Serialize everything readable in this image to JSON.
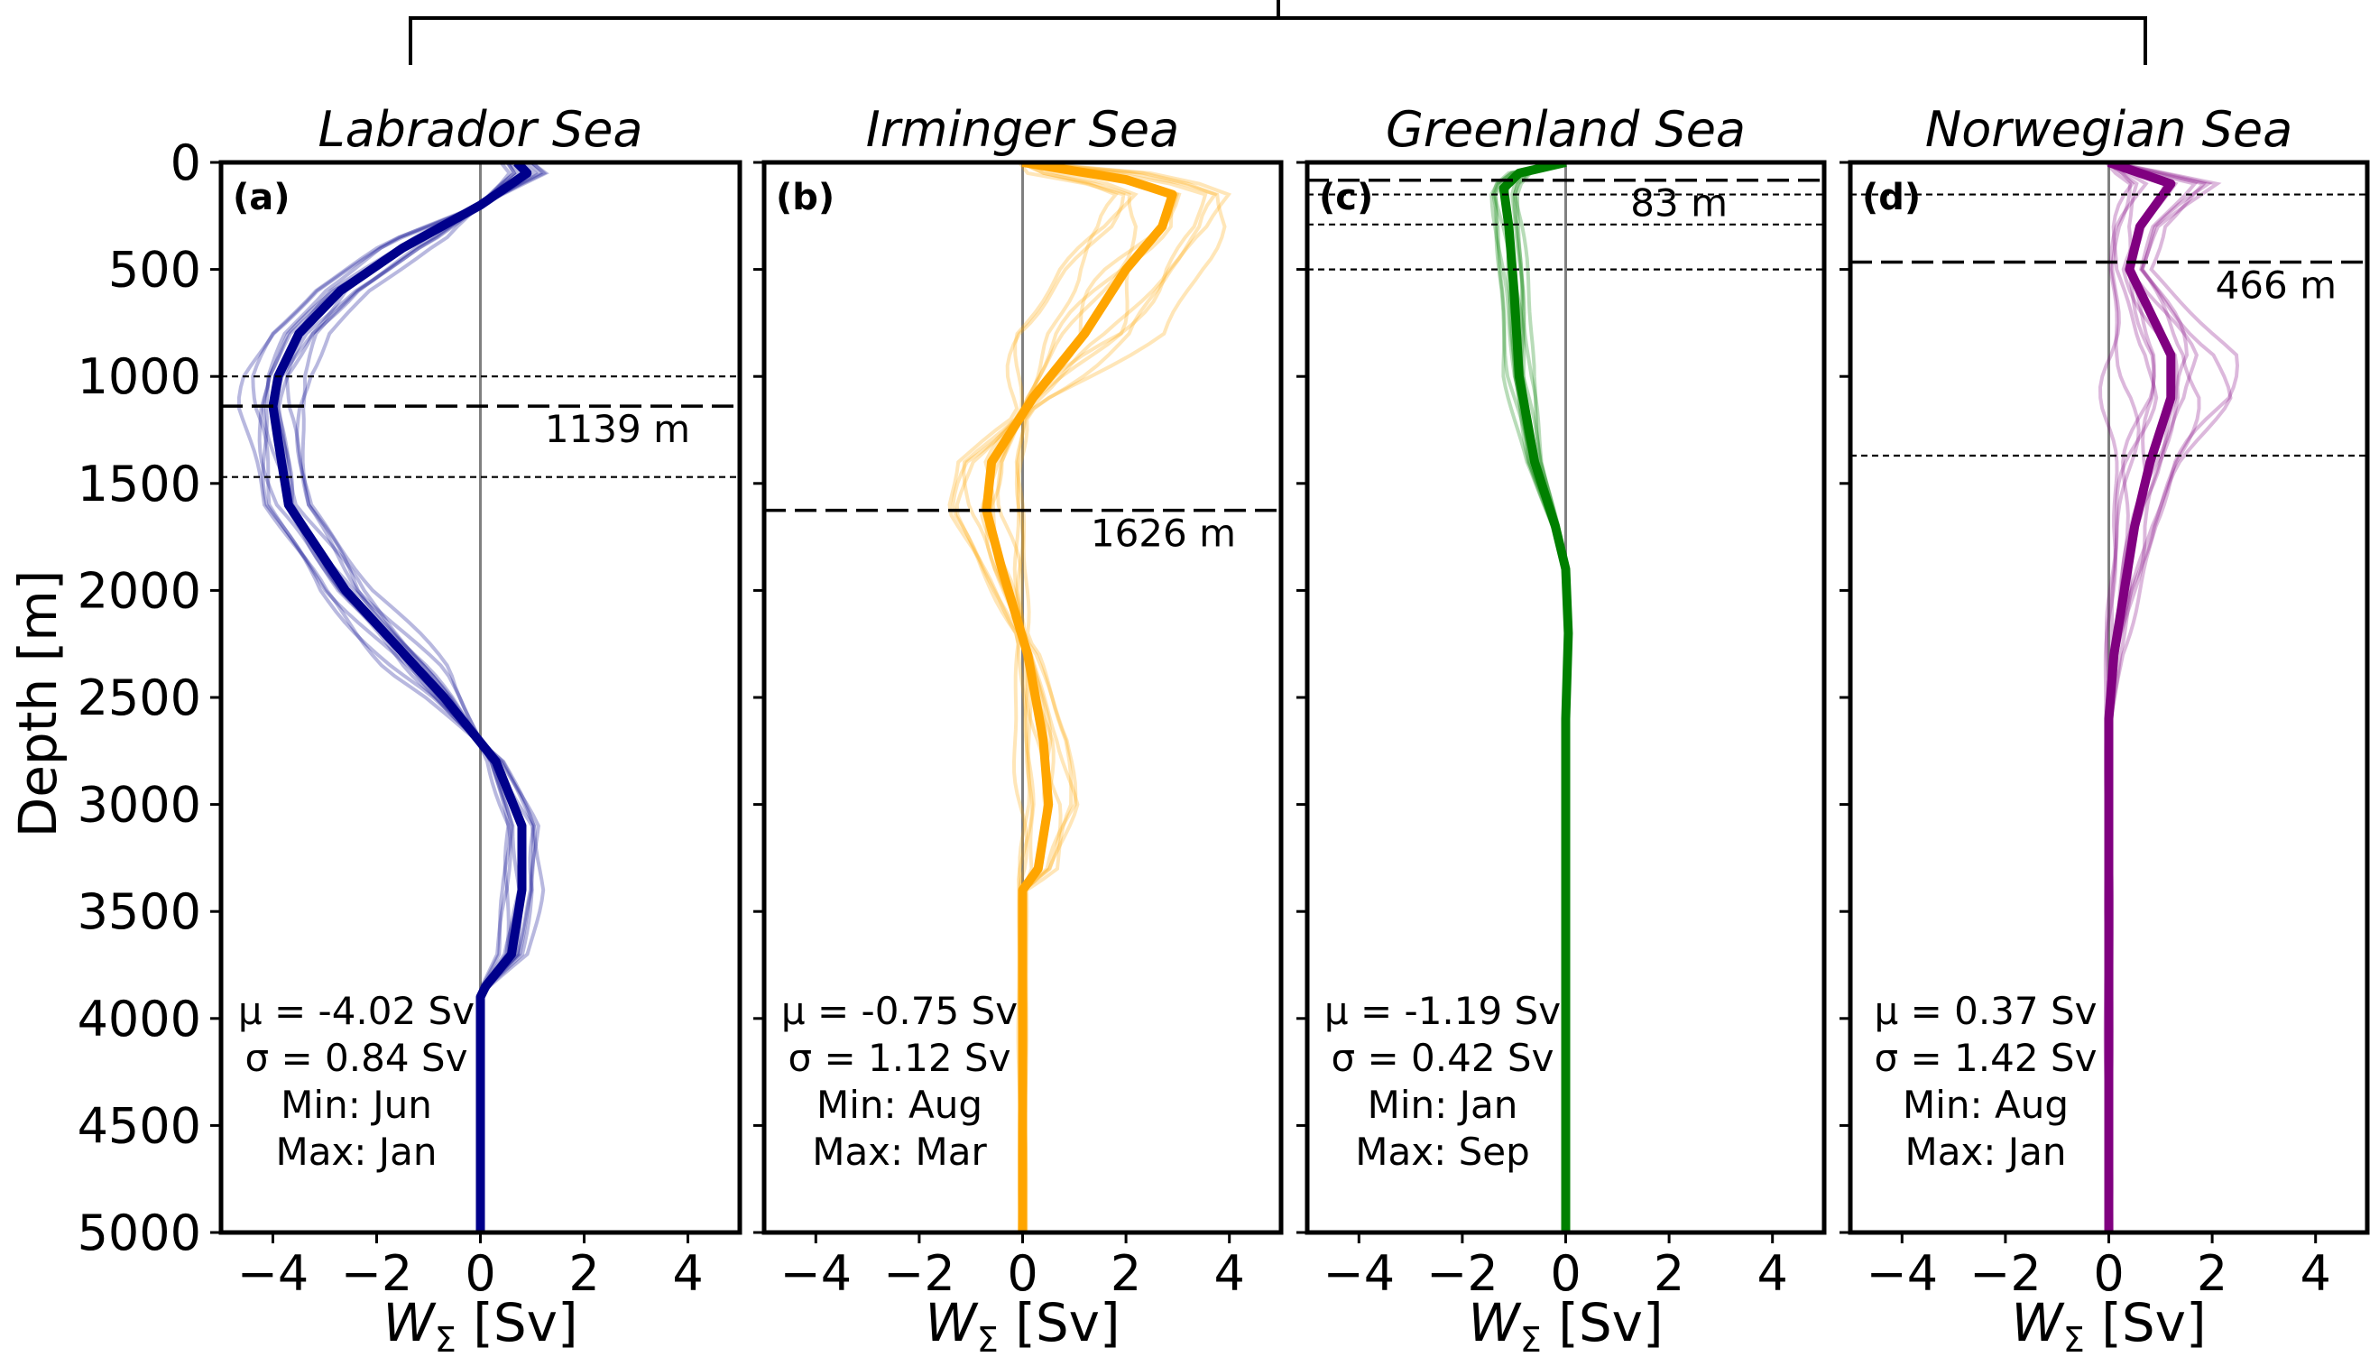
{
  "figure": {
    "ylabel": "Depth [m]",
    "xlabel_main": "W",
    "xlabel_sub": "Σ",
    "xlabel_unit": " [Sv]"
  },
  "chart_data": [
    {
      "type": "line",
      "title": "Labrador Sea",
      "letter": "(a)",
      "color": "#00008b",
      "xlim": [
        -5,
        5
      ],
      "ylim": [
        5000,
        0
      ],
      "xticks": [
        -4,
        -2,
        0,
        2,
        4
      ],
      "yticks": [
        0,
        500,
        1000,
        1500,
        2000,
        2500,
        3000,
        3500,
        4000,
        4500,
        5000
      ],
      "xtick_labels": [
        "−4",
        "−2",
        "0",
        "2",
        "4"
      ],
      "mld": 1139,
      "mld_label": "1139 m",
      "minmax_depths": [
        1000,
        1470
      ],
      "stats": [
        "μ = -4.02 Sv",
        "σ = 0.84 Sv",
        "Min:  Jun",
        "Max:  Jan"
      ],
      "mean": {
        "depth": [
          0,
          50,
          200,
          400,
          600,
          800,
          1000,
          1139,
          1300,
          1600,
          2000,
          2500,
          2800,
          3100,
          3400,
          3700,
          3850,
          3900,
          4000,
          5000
        ],
        "values": [
          0.7,
          0.9,
          0.0,
          -1.5,
          -2.7,
          -3.5,
          -3.9,
          -4.0,
          -3.9,
          -3.7,
          -2.6,
          -0.7,
          0.3,
          0.8,
          0.8,
          0.6,
          0.1,
          0.0,
          0.0,
          0.0
        ]
      },
      "monthly_spread": 0.5
    },
    {
      "type": "line",
      "title": "Irminger Sea",
      "letter": "(b)",
      "color": "#ffa500",
      "xlim": [
        -5,
        5
      ],
      "ylim": [
        5000,
        0
      ],
      "xticks": [
        -4,
        -2,
        0,
        2,
        4
      ],
      "yticks": [
        0,
        500,
        1000,
        1500,
        2000,
        2500,
        3000,
        3500,
        4000,
        4500,
        5000
      ],
      "xtick_labels": [
        "−4",
        "−2",
        "0",
        "2",
        "4"
      ],
      "mld": 1626,
      "mld_label": "1626 m",
      "minmax_depths": [],
      "stats": [
        "μ = -0.75 Sv",
        "σ = 1.12 Sv",
        "Min:  Aug",
        "Max:  Mar"
      ],
      "mean": {
        "depth": [
          0,
          80,
          150,
          300,
          500,
          800,
          1100,
          1400,
          1626,
          1900,
          2300,
          2700,
          3000,
          3300,
          3400,
          5000
        ],
        "values": [
          0.0,
          2.0,
          2.9,
          2.7,
          2.0,
          1.2,
          0.2,
          -0.6,
          -0.7,
          -0.4,
          0.1,
          0.4,
          0.5,
          0.3,
          0.0,
          0.0
        ]
      },
      "monthly_spread": 1.3
    },
    {
      "type": "line",
      "title": "Greenland Sea",
      "letter": "(c)",
      "color": "#008000",
      "xlim": [
        -5,
        5
      ],
      "ylim": [
        5000,
        0
      ],
      "xticks": [
        -4,
        -2,
        0,
        2,
        4
      ],
      "yticks": [
        0,
        500,
        1000,
        1500,
        2000,
        2500,
        3000,
        3500,
        4000,
        4500,
        5000
      ],
      "xtick_labels": [
        "−4",
        "−2",
        "0",
        "2",
        "4"
      ],
      "mld": 83,
      "mld_label": "83 m",
      "minmax_depths": [
        150,
        290,
        500
      ],
      "stats": [
        "μ = -1.19 Sv",
        "σ = 0.42 Sv",
        "Min:  Jan",
        "Max:  Sep"
      ],
      "mean": {
        "depth": [
          0,
          50,
          120,
          300,
          600,
          1000,
          1400,
          1700,
          1900,
          2200,
          2600,
          3000,
          5000
        ],
        "values": [
          0.0,
          -0.9,
          -1.2,
          -1.1,
          -1.0,
          -0.9,
          -0.6,
          -0.2,
          0.0,
          0.05,
          0.0,
          0.0,
          0.0
        ]
      },
      "monthly_spread": 0.3
    },
    {
      "type": "line",
      "title": "Norwegian Sea",
      "letter": "(d)",
      "color": "#800080",
      "xlim": [
        -5,
        5
      ],
      "ylim": [
        5000,
        0
      ],
      "xticks": [
        -4,
        -2,
        0,
        2,
        4
      ],
      "yticks": [
        0,
        500,
        1000,
        1500,
        2000,
        2500,
        3000,
        3500,
        4000,
        4500,
        5000
      ],
      "xtick_labels": [
        "−4",
        "−2",
        "0",
        "2",
        "4"
      ],
      "mld": 466,
      "mld_label": "466 m",
      "minmax_depths": [
        0,
        150,
        1370
      ],
      "stats": [
        "μ = 0.37 Sv",
        "σ = 1.42 Sv",
        "Min:  Aug",
        "Max:  Jan"
      ],
      "mean": {
        "depth": [
          0,
          100,
          300,
          500,
          700,
          900,
          1100,
          1400,
          1700,
          2000,
          2300,
          2600,
          5000
        ],
        "values": [
          0.0,
          1.2,
          0.6,
          0.4,
          0.8,
          1.2,
          1.2,
          0.8,
          0.5,
          0.3,
          0.1,
          0.0,
          0.0
        ]
      },
      "monthly_spread": 1.0
    }
  ]
}
